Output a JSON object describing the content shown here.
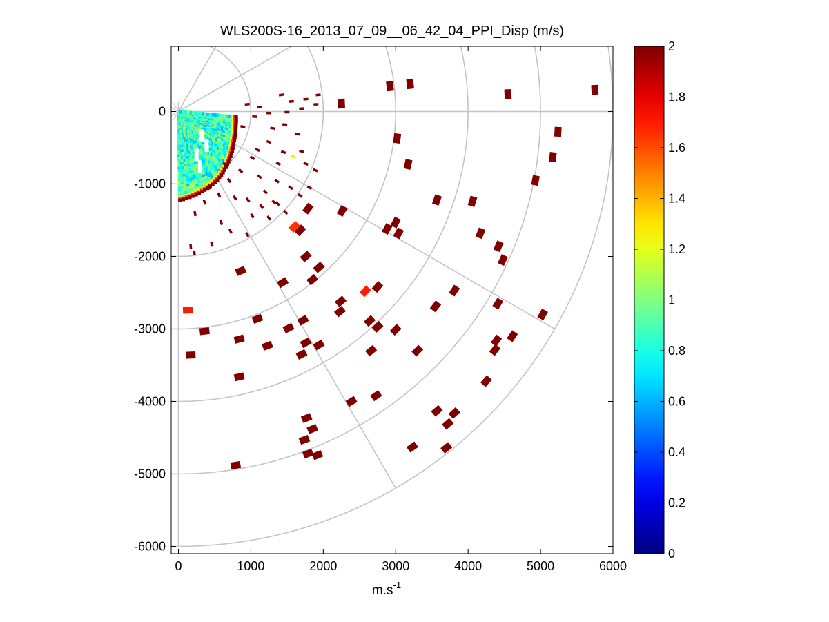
{
  "chart_data": {
    "type": "scatter",
    "subtype": "ppi-polar-sector",
    "title": "WLS200S-16_2013_07_09__06_42_04_PPI_Disp (m/s)",
    "xlabel": {
      "base": "m.s",
      "exponent": "-1"
    },
    "ylabel": "",
    "xlim": [
      -100,
      6000
    ],
    "ylim": [
      -6100,
      900
    ],
    "xticks": [
      0,
      1000,
      2000,
      3000,
      4000,
      5000,
      6000
    ],
    "yticks": [
      -6000,
      -5000,
      -4000,
      -3000,
      -2000,
      -1000,
      0
    ],
    "xtick_labels": [
      "0",
      "1000",
      "2000",
      "3000",
      "4000",
      "5000",
      "6000"
    ],
    "ytick_labels": [
      "-6000",
      "-5000",
      "-4000",
      "-3000",
      "-2000",
      "-1000",
      "0"
    ],
    "grid": {
      "type": "polar",
      "origin": [
        0,
        0
      ],
      "ring_radii": [
        1000,
        2000,
        3000,
        4000,
        5000,
        6000
      ],
      "spoke_angles_deg": [
        -90,
        -60,
        -30,
        0,
        30,
        60
      ],
      "spoke_max_radius": 6000
    },
    "sector": {
      "from_deg": -90,
      "to_deg": 0
    },
    "colorbar": {
      "colormap": "jet",
      "min": 0,
      "max": 2,
      "ticks": [
        0,
        0.2,
        0.4,
        0.6,
        0.8,
        1,
        1.2,
        1.4,
        1.6,
        1.8,
        2
      ],
      "tick_labels": [
        "0",
        "0.2",
        "0.4",
        "0.6",
        "0.8",
        "1",
        "1.2",
        "1.4",
        "1.6",
        "1.8",
        "2"
      ]
    },
    "near_field": {
      "description_value_range": [
        0.6,
        1.1
      ],
      "r_max_values": [
        1230,
        1160,
        1090,
        980,
        880,
        820,
        800
      ],
      "angles_deg": [
        -90,
        -75,
        -60,
        -45,
        -30,
        -15,
        -5
      ]
    },
    "points": [
      {
        "x": 3200,
        "y": 380,
        "v": 2
      },
      {
        "x": 2920,
        "y": 350,
        "v": 2
      },
      {
        "x": 4550,
        "y": 240,
        "v": 2
      },
      {
        "x": 5750,
        "y": 300,
        "v": 2
      },
      {
        "x": 2250,
        "y": 110,
        "v": 2
      },
      {
        "x": 5240,
        "y": -280,
        "v": 2
      },
      {
        "x": 3020,
        "y": -370,
        "v": 2
      },
      {
        "x": 3170,
        "y": -730,
        "v": 2
      },
      {
        "x": 5170,
        "y": -630,
        "v": 2
      },
      {
        "x": 4930,
        "y": -950,
        "v": 2
      },
      {
        "x": 3570,
        "y": -1220,
        "v": 2
      },
      {
        "x": 4060,
        "y": -1240,
        "v": 2
      },
      {
        "x": 4170,
        "y": -1680,
        "v": 2
      },
      {
        "x": 4420,
        "y": -1860,
        "v": 2
      },
      {
        "x": 4480,
        "y": -2050,
        "v": 2
      },
      {
        "x": 3000,
        "y": -1530,
        "v": 2
      },
      {
        "x": 2880,
        "y": -1620,
        "v": 2
      },
      {
        "x": 3040,
        "y": -1680,
        "v": 2
      },
      {
        "x": 2260,
        "y": -1370,
        "v": 2
      },
      {
        "x": 1790,
        "y": -1340,
        "v": 2
      },
      {
        "x": 1680,
        "y": -1640,
        "v": 2
      },
      {
        "x": 1600,
        "y": -1590,
        "v": 1.65
      },
      {
        "x": 1760,
        "y": -2000,
        "v": 2
      },
      {
        "x": 1940,
        "y": -2150,
        "v": 2
      },
      {
        "x": 1850,
        "y": -2320,
        "v": 2
      },
      {
        "x": 860,
        "y": -2200,
        "v": 2
      },
      {
        "x": 1440,
        "y": -2360,
        "v": 2
      },
      {
        "x": 2580,
        "y": -2480,
        "v": 1.7
      },
      {
        "x": 2750,
        "y": -2420,
        "v": 2
      },
      {
        "x": 2240,
        "y": -2620,
        "v": 2
      },
      {
        "x": 2230,
        "y": -2760,
        "v": 2
      },
      {
        "x": 3810,
        "y": -2470,
        "v": 2
      },
      {
        "x": 3550,
        "y": -2690,
        "v": 2
      },
      {
        "x": 4410,
        "y": -2650,
        "v": 2
      },
      {
        "x": 5030,
        "y": -2800,
        "v": 2
      },
      {
        "x": 130,
        "y": -2740,
        "v": 1.7
      },
      {
        "x": 1090,
        "y": -2860,
        "v": 2
      },
      {
        "x": 1720,
        "y": -2880,
        "v": 2
      },
      {
        "x": 2640,
        "y": -2890,
        "v": 2
      },
      {
        "x": 2750,
        "y": -2970,
        "v": 2
      },
      {
        "x": 3000,
        "y": -3010,
        "v": 2
      },
      {
        "x": 360,
        "y": -3030,
        "v": 2
      },
      {
        "x": 1520,
        "y": -2990,
        "v": 2
      },
      {
        "x": 840,
        "y": -3140,
        "v": 2
      },
      {
        "x": 1760,
        "y": -3190,
        "v": 2
      },
      {
        "x": 1940,
        "y": -3220,
        "v": 2
      },
      {
        "x": 1230,
        "y": -3230,
        "v": 2
      },
      {
        "x": 2660,
        "y": -3300,
        "v": 2
      },
      {
        "x": 1700,
        "y": -3350,
        "v": 2
      },
      {
        "x": 170,
        "y": -3360,
        "v": 2
      },
      {
        "x": 3300,
        "y": -3300,
        "v": 2
      },
      {
        "x": 4390,
        "y": -3160,
        "v": 2
      },
      {
        "x": 4370,
        "y": -3290,
        "v": 2
      },
      {
        "x": 4250,
        "y": -3720,
        "v": 2
      },
      {
        "x": 840,
        "y": -3660,
        "v": 2
      },
      {
        "x": 2730,
        "y": -3920,
        "v": 2
      },
      {
        "x": 2390,
        "y": -4000,
        "v": 2
      },
      {
        "x": 3570,
        "y": -4130,
        "v": 2
      },
      {
        "x": 3810,
        "y": -4160,
        "v": 2
      },
      {
        "x": 3720,
        "y": -4310,
        "v": 2
      },
      {
        "x": 1770,
        "y": -4230,
        "v": 2
      },
      {
        "x": 1850,
        "y": -4380,
        "v": 2
      },
      {
        "x": 1740,
        "y": -4530,
        "v": 2
      },
      {
        "x": 3230,
        "y": -4630,
        "v": 2
      },
      {
        "x": 3700,
        "y": -4640,
        "v": 2
      },
      {
        "x": 1790,
        "y": -4720,
        "v": 2
      },
      {
        "x": 790,
        "y": -4880,
        "v": 2
      },
      {
        "x": 1920,
        "y": -4740,
        "v": 2
      },
      {
        "x": 4610,
        "y": -3100,
        "v": 2
      },
      {
        "x": 950,
        "y": 100,
        "v": 2
      },
      {
        "x": 1120,
        "y": 60,
        "v": 2
      },
      {
        "x": 1420,
        "y": 230,
        "v": 2
      },
      {
        "x": 1560,
        "y": 140,
        "v": 2
      },
      {
        "x": 1700,
        "y": 40,
        "v": 2
      },
      {
        "x": 1760,
        "y": 170,
        "v": 2
      },
      {
        "x": 1900,
        "y": 100,
        "v": 2
      },
      {
        "x": 1930,
        "y": 230,
        "v": 2
      },
      {
        "x": 1050,
        "y": -70,
        "v": 2
      },
      {
        "x": 890,
        "y": -210,
        "v": 2
      },
      {
        "x": 1300,
        "y": -230,
        "v": 2
      },
      {
        "x": 1470,
        "y": -180,
        "v": 2
      },
      {
        "x": 1640,
        "y": -310,
        "v": 2
      },
      {
        "x": 1250,
        "y": -420,
        "v": 2
      },
      {
        "x": 1090,
        "y": -530,
        "v": 2
      },
      {
        "x": 1450,
        "y": -560,
        "v": 2
      },
      {
        "x": 1580,
        "y": -620,
        "v": 1.3
      },
      {
        "x": 1760,
        "y": -720,
        "v": 2
      },
      {
        "x": 1890,
        "y": -810,
        "v": 2
      },
      {
        "x": 640,
        "y": -730,
        "v": 2
      },
      {
        "x": 860,
        "y": -820,
        "v": 2
      },
      {
        "x": 1120,
        "y": -900,
        "v": 2
      },
      {
        "x": 1360,
        "y": -960,
        "v": 2
      },
      {
        "x": 1550,
        "y": -1050,
        "v": 2
      },
      {
        "x": 1810,
        "y": -1050,
        "v": 2
      },
      {
        "x": 1680,
        "y": -1160,
        "v": 2
      },
      {
        "x": 430,
        "y": -1040,
        "v": 2
      },
      {
        "x": 560,
        "y": -1150,
        "v": 2
      },
      {
        "x": 780,
        "y": -1190,
        "v": 2
      },
      {
        "x": 960,
        "y": -1220,
        "v": 2
      },
      {
        "x": 1150,
        "y": -1310,
        "v": 2
      },
      {
        "x": 1370,
        "y": -1270,
        "v": 2
      },
      {
        "x": 1480,
        "y": -1390,
        "v": 2
      },
      {
        "x": 1250,
        "y": -1470,
        "v": 2
      },
      {
        "x": 1020,
        "y": -1440,
        "v": 2
      },
      {
        "x": 360,
        "y": -1250,
        "v": 2
      },
      {
        "x": 230,
        "y": -1410,
        "v": 2
      },
      {
        "x": 590,
        "y": -1530,
        "v": 2
      },
      {
        "x": 720,
        "y": -1650,
        "v": 2
      },
      {
        "x": 950,
        "y": -1700,
        "v": 2
      },
      {
        "x": 460,
        "y": -1830,
        "v": 2
      },
      {
        "x": 220,
        "y": -1950,
        "v": 2
      },
      {
        "x": 170,
        "y": -1860,
        "v": 2
      },
      {
        "x": 1320,
        "y": -1250,
        "v": 2
      },
      {
        "x": 1200,
        "y": -1110,
        "v": 2
      },
      {
        "x": 700,
        "y": -950,
        "v": 2
      },
      {
        "x": 1020,
        "y": -640,
        "v": 2
      },
      {
        "x": 1380,
        "y": -720,
        "v": 2
      },
      {
        "x": 1700,
        "y": -550,
        "v": 2
      },
      {
        "x": 1250,
        "y": -20,
        "v": 2
      },
      {
        "x": 1500,
        "y": -10,
        "v": 2
      }
    ]
  }
}
